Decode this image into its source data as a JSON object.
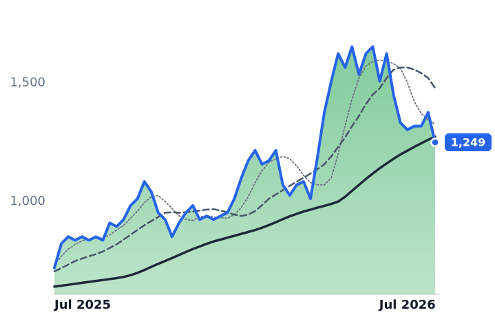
{
  "chart_data": {
    "type": "line",
    "categories": [
      "Jul 2025",
      null,
      null,
      null,
      null,
      null,
      null,
      null,
      null,
      null,
      null,
      null,
      null,
      null,
      null,
      null,
      null,
      null,
      null,
      null,
      null,
      null,
      null,
      null,
      null,
      null,
      null,
      null,
      null,
      null,
      null,
      null,
      null,
      null,
      null,
      null,
      null,
      null,
      null,
      null,
      null,
      null,
      null,
      null,
      null,
      null,
      null,
      null,
      null,
      null,
      null,
      "Jul 2026",
      null,
      null,
      null,
      null
    ],
    "ylim": [
      610,
      1790
    ],
    "yticks": [
      {
        "value": 1000,
        "label": "1,000"
      },
      {
        "value": 1500,
        "label": "1,500"
      }
    ],
    "area_color": "#6cc28b",
    "series": [
      {
        "color": "#2563eb",
        "dash": "solid",
        "width": 4,
        "fill": true,
        "values": [
          721,
          823,
          852,
          837,
          852,
          837,
          852,
          837,
          910,
          895,
          924,
          983,
          1012,
          1084,
          1041,
          953,
          924,
          852,
          910,
          953,
          983,
          924,
          939,
          924,
          939,
          953,
          1012,
          1099,
          1172,
          1215,
          1157,
          1172,
          1215,
          1070,
          1026,
          1070,
          1084,
          1012,
          1186,
          1375,
          1506,
          1622,
          1564,
          1651,
          1535,
          1622,
          1651,
          1506,
          1622,
          1448,
          1331,
          1302,
          1317,
          1317,
          1375,
          1249
        ],
        "value_labels": [
          null,
          null,
          null,
          null,
          null,
          null,
          null,
          null,
          null,
          null,
          null,
          null,
          null,
          null,
          null,
          null,
          null,
          null,
          null,
          null,
          null,
          null,
          null,
          null,
          null,
          null,
          null,
          null,
          null,
          null,
          null,
          null,
          null,
          null,
          null,
          null,
          null,
          null,
          null,
          null,
          null,
          null,
          null,
          null,
          null,
          null,
          null,
          null,
          null,
          null,
          null,
          null,
          null,
          null,
          null,
          "1,249"
        ]
      },
      {
        "color": "#1e293b",
        "dash": "solid",
        "width": 3.5,
        "fill": false,
        "values": [
          642,
          646,
          650,
          654,
          658,
          662,
          666,
          670,
          674,
          678,
          683,
          690,
          700,
          712,
          725,
          738,
          750,
          762,
          775,
          788,
          800,
          811,
          822,
          832,
          840,
          848,
          856,
          864,
          872,
          880,
          890,
          901,
          913,
          926,
          938,
          948,
          958,
          966,
          974,
          982,
          990,
          1000,
          1020,
          1045,
          1070,
          1095,
          1118,
          1140,
          1160,
          1180,
          1198,
          1214,
          1230,
          1245,
          1260,
          1273
        ]
      },
      {
        "color": "#475569",
        "dash": "dashed",
        "width": 2.5,
        "fill": false,
        "values": [
          706,
          720,
          735,
          750,
          760,
          770,
          779,
          790,
          805,
          820,
          840,
          860,
          881,
          900,
          918,
          935,
          953,
          955,
          953,
          955,
          958,
          962,
          966,
          968,
          962,
          955,
          945,
          939,
          945,
          960,
          985,
          1012,
          1030,
          1048,
          1066,
          1084,
          1100,
          1118,
          1136,
          1157,
          1190,
          1230,
          1270,
          1317,
          1360,
          1410,
          1450,
          1477,
          1520,
          1555,
          1564,
          1564,
          1555,
          1540,
          1520,
          1477
        ]
      },
      {
        "color": "#6b7280",
        "dash": "dotted",
        "width": 1.8,
        "fill": false,
        "values": [
          735,
          770,
          800,
          820,
          835,
          842,
          845,
          847,
          860,
          880,
          900,
          930,
          960,
          995,
          1020,
          1025,
          1000,
          970,
          940,
          925,
          920,
          935,
          940,
          935,
          932,
          930,
          945,
          975,
          1020,
          1080,
          1130,
          1165,
          1180,
          1190,
          1180,
          1150,
          1110,
          1080,
          1070,
          1070,
          1100,
          1200,
          1320,
          1430,
          1520,
          1570,
          1590,
          1595,
          1590,
          1580,
          1560,
          1500,
          1420,
          1370,
          1345,
          1325
        ]
      }
    ]
  }
}
